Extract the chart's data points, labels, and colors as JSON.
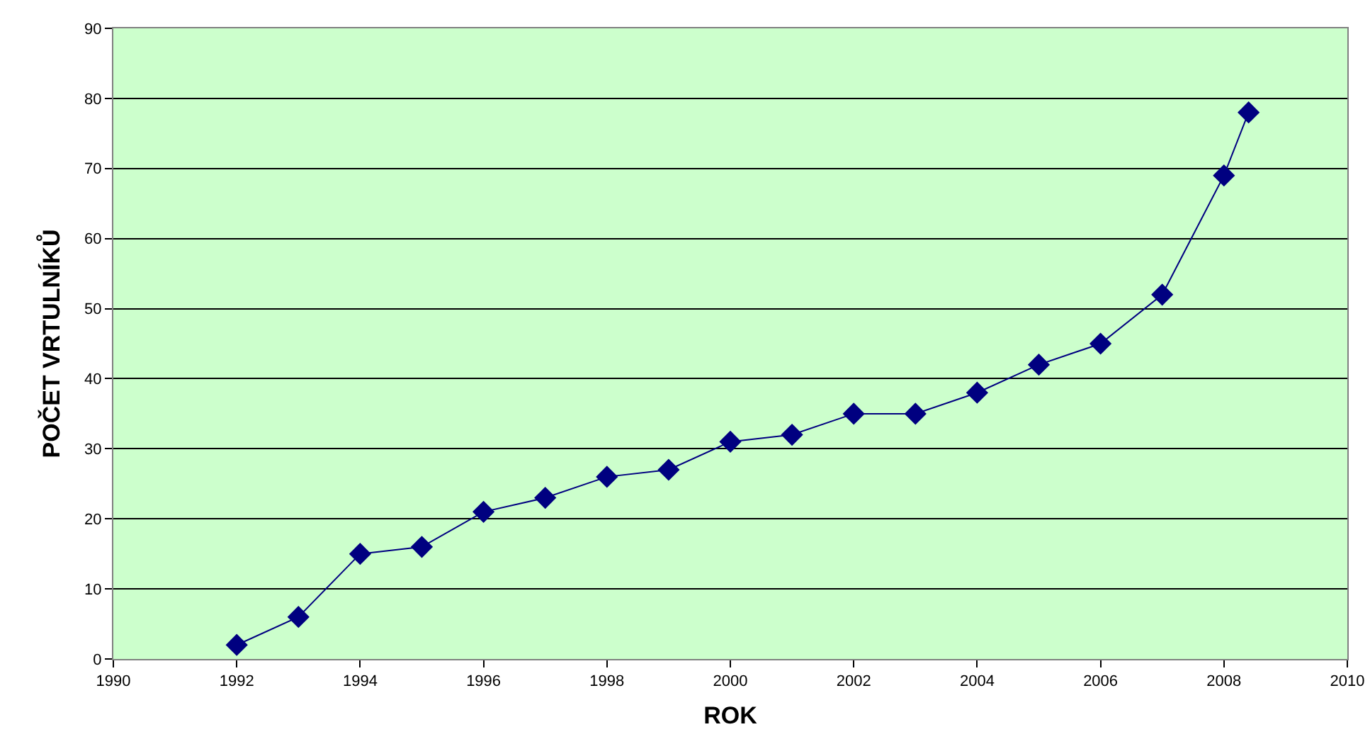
{
  "chart_data": {
    "type": "line",
    "xlabel": "ROK",
    "ylabel": "POČET VRTULNÍKŮ",
    "x": [
      1992,
      1993,
      1994,
      1995,
      1996,
      1997,
      1998,
      1999,
      2000,
      2001,
      2002,
      2003,
      2004,
      2005,
      2006,
      2007,
      2008,
      2008.4
    ],
    "series": [
      {
        "color": "#000080",
        "values": [
          2,
          6,
          15,
          16,
          21,
          23,
          26,
          27,
          31,
          32,
          35,
          35,
          38,
          42,
          45,
          52,
          69,
          78
        ]
      }
    ],
    "marker": "diamond",
    "line_style": "solid",
    "grid": "y",
    "xlim": [
      1990,
      2010
    ],
    "xticks": [
      1990,
      1992,
      1994,
      1996,
      1998,
      2000,
      2002,
      2004,
      2006,
      2008,
      2010
    ],
    "ylim": [
      0,
      90
    ],
    "yticks": [
      0,
      10,
      20,
      30,
      40,
      50,
      60,
      70,
      80,
      90
    ]
  }
}
